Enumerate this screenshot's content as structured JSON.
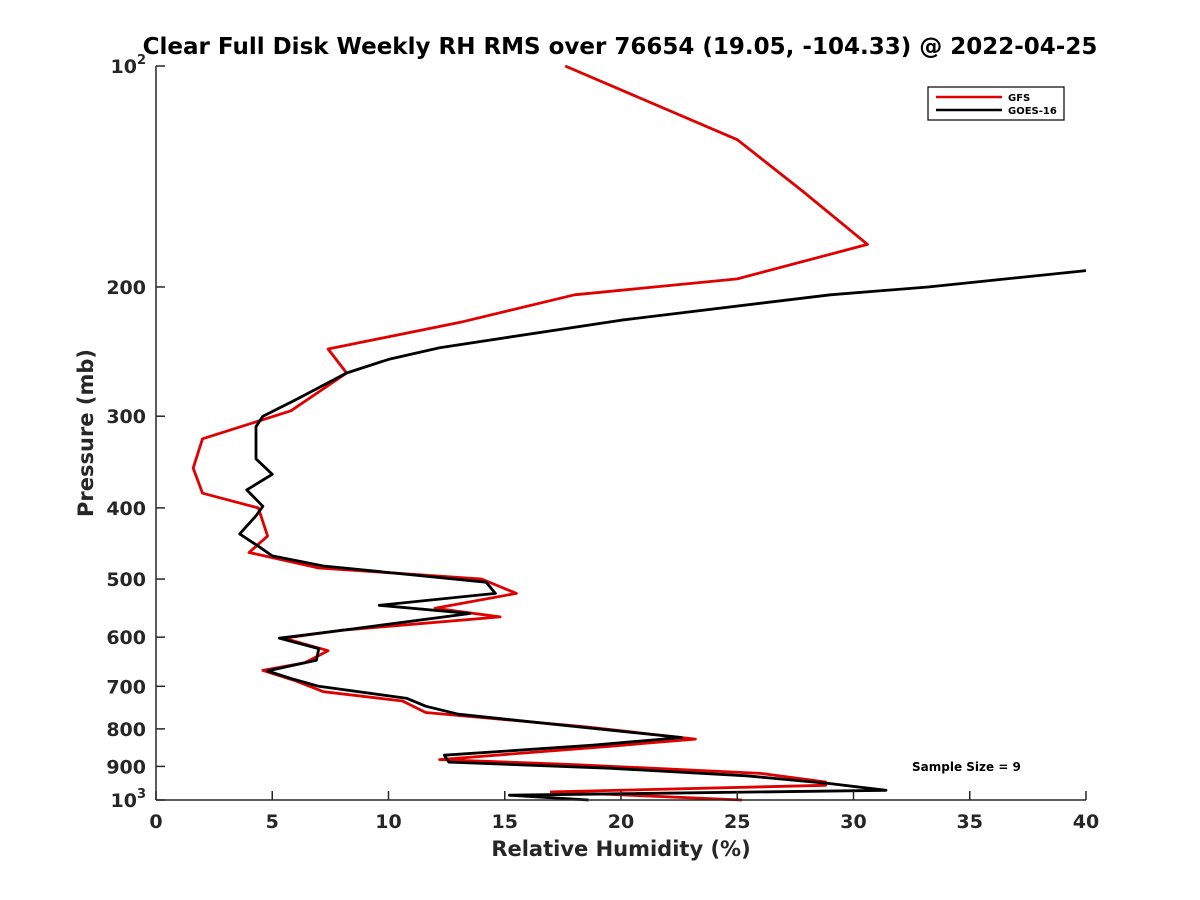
{
  "chart_data": {
    "type": "line",
    "title": "Clear Full Disk Weekly RH RMS over 76654 (19.05, -104.33) @ 2022-04-25",
    "xlabel": "Relative Humidity (%)",
    "ylabel": "Pressure (mb)",
    "xlim": [
      0,
      40
    ],
    "ylim": [
      100,
      1000
    ],
    "yscale": "log",
    "y_reversed": true,
    "x_ticks": [
      "0",
      "5",
      "10",
      "15",
      "20",
      "25",
      "30",
      "35",
      "40"
    ],
    "y_ticks": [
      {
        "value": 100,
        "base": "10",
        "exp": "2"
      },
      {
        "value": 200,
        "label": "200"
      },
      {
        "value": 300,
        "label": "300"
      },
      {
        "value": 400,
        "label": "400"
      },
      {
        "value": 500,
        "label": "500"
      },
      {
        "value": 600,
        "label": "600"
      },
      {
        "value": 700,
        "label": "700"
      },
      {
        "value": 800,
        "label": "800"
      },
      {
        "value": 900,
        "label": "900"
      },
      {
        "value": 1000,
        "base": "10",
        "exp": "3"
      }
    ],
    "legend_position": "top-right",
    "annotation": "Sample Size = 9",
    "series": [
      {
        "name": "GFS",
        "color": "#e00000",
        "points": [
          [
            17.6,
            100
          ],
          [
            25.0,
            126
          ],
          [
            27.8,
            148
          ],
          [
            30.6,
            175
          ],
          [
            25.0,
            195
          ],
          [
            18.0,
            205
          ],
          [
            13.2,
            223
          ],
          [
            7.4,
            243
          ],
          [
            8.2,
            262
          ],
          [
            5.8,
            295
          ],
          [
            2.0,
            322
          ],
          [
            1.6,
            353
          ],
          [
            2.0,
            382
          ],
          [
            4.4,
            400
          ],
          [
            4.8,
            437
          ],
          [
            4.0,
            460
          ],
          [
            7.0,
            483
          ],
          [
            14.0,
            500
          ],
          [
            15.5,
            523
          ],
          [
            12.0,
            548
          ],
          [
            14.8,
            563
          ],
          [
            8.0,
            587
          ],
          [
            5.5,
            602
          ],
          [
            7.4,
            626
          ],
          [
            6.4,
            650
          ],
          [
            4.6,
            666
          ],
          [
            6.0,
            688
          ],
          [
            7.2,
            712
          ],
          [
            10.6,
            733
          ],
          [
            11.6,
            760
          ],
          [
            18.5,
            795
          ],
          [
            23.2,
            826
          ],
          [
            19.5,
            845
          ],
          [
            12.2,
            881
          ],
          [
            18.0,
            895
          ],
          [
            26.0,
            920
          ],
          [
            28.8,
            945
          ],
          [
            28.8,
            955
          ],
          [
            17.0,
            975
          ],
          [
            25.2,
            1000
          ]
        ]
      },
      {
        "name": "GOES-16",
        "color": "#000000",
        "points": [
          [
            40.0,
            190
          ],
          [
            33.2,
            200
          ],
          [
            29.0,
            205
          ],
          [
            20.0,
            222
          ],
          [
            12.2,
            242
          ],
          [
            10.0,
            251
          ],
          [
            8.2,
            262
          ],
          [
            6.0,
            285
          ],
          [
            4.6,
            300
          ],
          [
            4.3,
            310
          ],
          [
            4.3,
            343
          ],
          [
            5.0,
            360
          ],
          [
            3.9,
            378
          ],
          [
            4.6,
            398
          ],
          [
            4.3,
            410
          ],
          [
            3.6,
            434
          ],
          [
            4.4,
            451
          ],
          [
            5.0,
            465
          ],
          [
            7.2,
            480
          ],
          [
            14.2,
            505
          ],
          [
            14.6,
            523
          ],
          [
            9.6,
            543
          ],
          [
            13.5,
            557
          ],
          [
            8.4,
            585
          ],
          [
            5.3,
            602
          ],
          [
            7.0,
            622
          ],
          [
            6.9,
            645
          ],
          [
            4.8,
            667
          ],
          [
            5.8,
            683
          ],
          [
            7.0,
            700
          ],
          [
            10.8,
            727
          ],
          [
            11.6,
            745
          ],
          [
            13.0,
            764
          ],
          [
            19.0,
            800
          ],
          [
            22.6,
            822
          ],
          [
            18.8,
            842
          ],
          [
            12.4,
            869
          ],
          [
            12.6,
            888
          ],
          [
            19.5,
            905
          ],
          [
            25.4,
            927
          ],
          [
            29.0,
            950
          ],
          [
            31.4,
            970
          ],
          [
            15.2,
            985
          ],
          [
            18.6,
            1000
          ]
        ]
      }
    ]
  }
}
